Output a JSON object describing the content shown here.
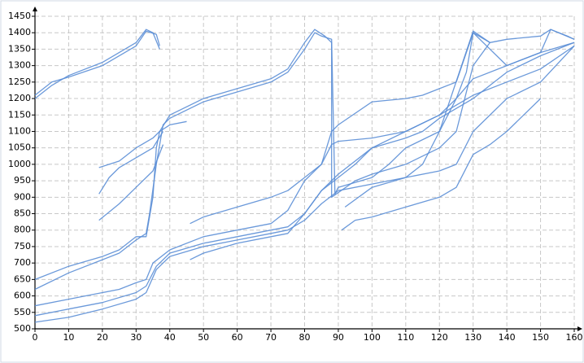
{
  "chart_data": {
    "type": "line",
    "color": "#5b8ed6",
    "grid": true,
    "xlim": [
      0,
      160
    ],
    "xticks": [
      0,
      10,
      20,
      30,
      40,
      50,
      60,
      70,
      80,
      90,
      100,
      110,
      120,
      130,
      140,
      150,
      160
    ],
    "ylim": [
      500,
      1450
    ],
    "yticks": [
      500,
      550,
      600,
      650,
      700,
      750,
      800,
      850,
      900,
      950,
      1000,
      1050,
      1100,
      1150,
      1200,
      1250,
      1300,
      1350,
      1400,
      1450
    ],
    "series": [
      {
        "x": [
          0,
          5,
          10,
          20,
          30,
          33,
          35,
          37
        ],
        "values": [
          1200,
          1240,
          1270,
          1310,
          1370,
          1410,
          1400,
          1350
        ]
      },
      {
        "x": [
          0,
          5,
          10,
          20,
          30,
          33,
          36,
          37
        ],
        "values": [
          1210,
          1250,
          1265,
          1300,
          1360,
          1405,
          1395,
          1360
        ]
      },
      {
        "x": [
          0,
          10,
          20,
          25,
          30,
          33,
          35,
          36,
          37,
          40,
          50,
          60,
          70,
          75,
          80,
          83,
          86,
          88,
          88,
          95,
          100,
          110,
          120,
          125,
          130,
          135
        ],
        "values": [
          650,
          690,
          720,
          740,
          780,
          780,
          900,
          1050,
          1100,
          1150,
          1200,
          1230,
          1260,
          1290,
          1370,
          1410,
          1390,
          1370,
          900,
          950,
          970,
          1000,
          1050,
          1100,
          1300,
          1370
        ]
      },
      {
        "x": [
          0,
          10,
          20,
          25,
          30,
          33,
          34,
          36,
          38,
          40,
          50,
          60,
          70,
          75,
          80,
          83,
          85,
          88,
          89,
          90,
          100,
          105,
          110,
          120,
          125,
          128,
          130,
          135,
          140,
          150,
          153,
          158,
          160
        ],
        "values": [
          620,
          670,
          710,
          730,
          770,
          790,
          850,
          1000,
          1120,
          1140,
          1190,
          1220,
          1250,
          1280,
          1350,
          1400,
          1390,
          1380,
          910,
          930,
          960,
          1000,
          1050,
          1100,
          1200,
          1280,
          1400,
          1370,
          1380,
          1390,
          1410,
          1390,
          1380
        ]
      },
      {
        "x": [
          0,
          10,
          20,
          25,
          30,
          33,
          35,
          40,
          50,
          60,
          70,
          75,
          80,
          85,
          88,
          90,
          100,
          110,
          115,
          120,
          125,
          130,
          140,
          150,
          153,
          160
        ],
        "values": [
          570,
          590,
          610,
          620,
          640,
          650,
          700,
          740,
          780,
          800,
          820,
          860,
          950,
          1000,
          1100,
          1120,
          1190,
          1200,
          1210,
          1230,
          1250,
          1400,
          1300,
          1340,
          1410,
          1380
        ]
      },
      {
        "x": [
          0,
          10,
          20,
          30,
          33,
          36,
          40,
          50,
          60,
          70,
          75,
          80,
          85,
          90,
          95,
          100,
          110,
          120,
          125,
          130,
          140,
          150,
          160
        ],
        "values": [
          540,
          560,
          580,
          610,
          630,
          690,
          730,
          760,
          780,
          800,
          810,
          850,
          920,
          960,
          1000,
          1050,
          1100,
          1150,
          1200,
          1260,
          1300,
          1340,
          1370
        ]
      },
      {
        "x": [
          0,
          10,
          20,
          30,
          33,
          36,
          40,
          50,
          60,
          70,
          75,
          80,
          85,
          90,
          100,
          110,
          120,
          125,
          130,
          140,
          150,
          160
        ],
        "values": [
          520,
          535,
          560,
          590,
          610,
          680,
          720,
          750,
          770,
          790,
          800,
          830,
          880,
          920,
          940,
          960,
          980,
          1000,
          1100,
          1200,
          1250,
          1360
        ]
      },
      {
        "x": [
          19,
          25,
          30,
          35,
          37,
          40,
          45
        ],
        "values": [
          990,
          1010,
          1050,
          1080,
          1100,
          1120,
          1130
        ]
      },
      {
        "x": [
          19,
          22,
          25,
          30,
          35,
          38
        ],
        "values": [
          910,
          960,
          990,
          1020,
          1050,
          1100
        ]
      },
      {
        "x": [
          19,
          25,
          30,
          35,
          38
        ],
        "values": [
          830,
          880,
          930,
          980,
          1060
        ]
      },
      {
        "x": [
          46,
          50,
          60,
          70,
          75,
          80,
          85,
          88,
          90,
          100,
          110,
          120,
          130,
          140,
          150,
          160
        ],
        "values": [
          820,
          840,
          870,
          900,
          920,
          960,
          1000,
          1060,
          1070,
          1080,
          1100,
          1150,
          1210,
          1250,
          1290,
          1360
        ]
      },
      {
        "x": [
          46,
          50,
          60,
          70,
          75,
          80,
          85,
          88,
          90,
          100,
          110,
          115,
          120,
          130,
          135,
          140,
          150,
          160
        ],
        "values": [
          710,
          730,
          760,
          780,
          790,
          850,
          920,
          950,
          970,
          1050,
          1080,
          1100,
          1140,
          1200,
          1240,
          1280,
          1330,
          1370
        ]
      },
      {
        "x": [
          91,
          95,
          100,
          110,
          120,
          125,
          130,
          135,
          140,
          145,
          150
        ],
        "values": [
          800,
          830,
          840,
          870,
          900,
          930,
          1030,
          1060,
          1100,
          1150,
          1200
        ]
      },
      {
        "x": [
          92,
          100,
          110,
          115,
          120,
          130,
          135
        ],
        "values": [
          870,
          930,
          960,
          1000,
          1100,
          1405,
          1370
        ]
      }
    ]
  }
}
